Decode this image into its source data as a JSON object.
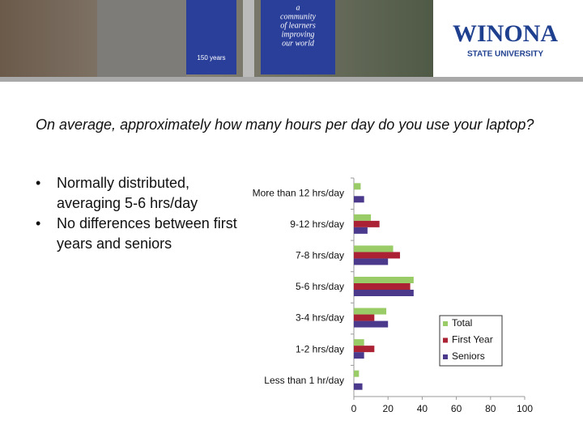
{
  "slide": {
    "banner": {
      "university": "WINONA",
      "subtitle": "STATE UNIVERSITY",
      "motto": [
        "a",
        "community",
        "of learners",
        "improving",
        "our world"
      ],
      "anniversary": "150 years"
    },
    "question": "On average, approximately how many hours per day do you use your laptop?",
    "bullets": [
      "Normally distributed, averaging 5-6 hrs/day",
      "No differences between first years and seniors"
    ]
  },
  "chart_data": {
    "type": "hbar",
    "categories": [
      "More than 12 hrs/day",
      "9-12 hrs/day",
      "7-8 hrs/day",
      "5-6 hrs/day",
      "3-4 hrs/day",
      "1-2 hrs/day",
      "Less than 1 hr/day"
    ],
    "series": [
      {
        "name": "Total",
        "color": "#99cc66",
        "values": [
          4,
          10,
          23,
          35,
          19,
          6,
          3
        ]
      },
      {
        "name": "First Year",
        "color": "#aa2233",
        "values": [
          0,
          15,
          27,
          33,
          12,
          12,
          0
        ]
      },
      {
        "name": "Seniors",
        "color": "#4b3a8c",
        "values": [
          6,
          8,
          20,
          35,
          20,
          6,
          5
        ]
      }
    ],
    "xlim": [
      0,
      100
    ],
    "xticks": [
      0,
      20,
      40,
      60,
      80,
      100
    ],
    "legend": "lower right"
  }
}
